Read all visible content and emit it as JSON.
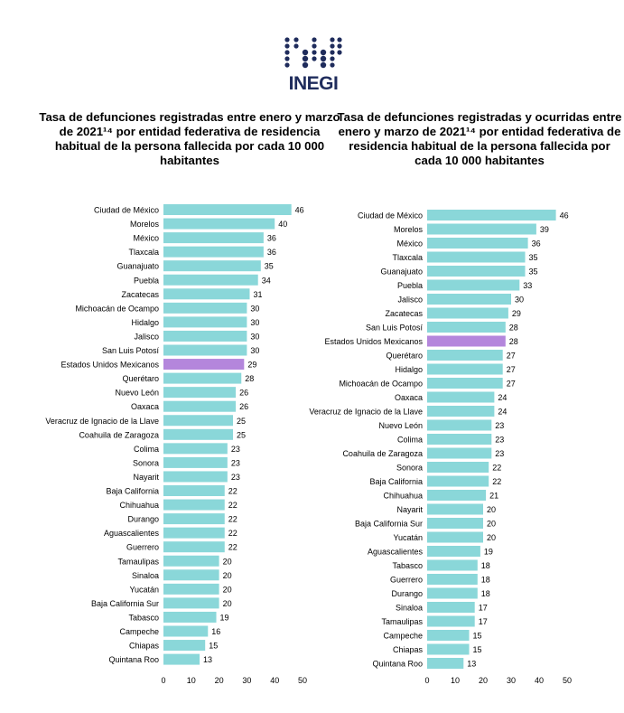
{
  "logo": {
    "text": "INEGI",
    "color": "#1f2c5c"
  },
  "colors": {
    "bar": "#8ad7d9",
    "highlight": "#b486dc",
    "text": "#000000"
  },
  "chart_data": [
    {
      "type": "bar",
      "orientation": "horizontal",
      "title": "Tasa de defunciones registradas entre enero y marzo de 2021¹⁴ por entidad federativa de residencia habitual de la persona fallecida por cada 10 000 habitantes",
      "highlight": "Estados Unidos Mexicanos",
      "xlim": [
        0,
        50
      ],
      "xticks": [
        "0",
        "10",
        "20",
        "30",
        "40",
        "50"
      ],
      "grid": false,
      "categories": [
        "Ciudad de México",
        "Morelos",
        "México",
        "Tlaxcala",
        "Guanajuato",
        "Puebla",
        "Zacatecas",
        "Michoacán de Ocampo",
        "Hidalgo",
        "Jalisco",
        "San Luis Potosí",
        "Estados Unidos Mexicanos",
        "Querétaro",
        "Nuevo León",
        "Oaxaca",
        "Veracruz de Ignacio de la Llave",
        "Coahuila de Zaragoza",
        "Colima",
        "Sonora",
        "Nayarit",
        "Baja California",
        "Chihuahua",
        "Durango",
        "Aguascalientes",
        "Guerrero",
        "Tamaulipas",
        "Sinaloa",
        "Yucatán",
        "Baja California Sur",
        "Tabasco",
        "Campeche",
        "Chiapas",
        "Quintana Roo"
      ],
      "values": [
        46,
        40,
        36,
        36,
        35,
        34,
        31,
        30,
        30,
        30,
        30,
        29,
        28,
        26,
        26,
        25,
        25,
        23,
        23,
        23,
        22,
        22,
        22,
        22,
        22,
        20,
        20,
        20,
        20,
        19,
        16,
        15,
        13
      ]
    },
    {
      "type": "bar",
      "orientation": "horizontal",
      "title": "Tasa de defunciones registradas y ocurridas entre enero y marzo de 2021¹⁴ por entidad federativa de residencia habitual de la persona fallecida por cada 10 000 habitantes",
      "highlight": "Estados Unidos Mexicanos",
      "xlim": [
        0,
        50
      ],
      "xticks": [
        "0",
        "10",
        "20",
        "30",
        "40",
        "50"
      ],
      "grid": false,
      "categories": [
        "Ciudad de México",
        "Morelos",
        "México",
        "Tlaxcala",
        "Guanajuato",
        "Puebla",
        "Jalisco",
        "Zacatecas",
        "San Luis Potosí",
        "Estados Unidos Mexicanos",
        "Querétaro",
        "Hidalgo",
        "Michoacán de Ocampo",
        "Oaxaca",
        "Veracruz de Ignacio de la Llave",
        "Nuevo León",
        "Colima",
        "Coahuila de Zaragoza",
        "Sonora",
        "Baja California",
        "Chihuahua",
        "Nayarit",
        "Baja California Sur",
        "Yucatán",
        "Aguascalientes",
        "Tabasco",
        "Guerrero",
        "Durango",
        "Sinaloa",
        "Tamaulipas",
        "Campeche",
        "Chiapas",
        "Quintana Roo"
      ],
      "values": [
        46,
        39,
        36,
        35,
        35,
        33,
        30,
        29,
        28,
        28,
        27,
        27,
        27,
        24,
        24,
        23,
        23,
        23,
        22,
        22,
        21,
        20,
        20,
        20,
        19,
        18,
        18,
        18,
        17,
        17,
        15,
        15,
        13
      ]
    }
  ]
}
